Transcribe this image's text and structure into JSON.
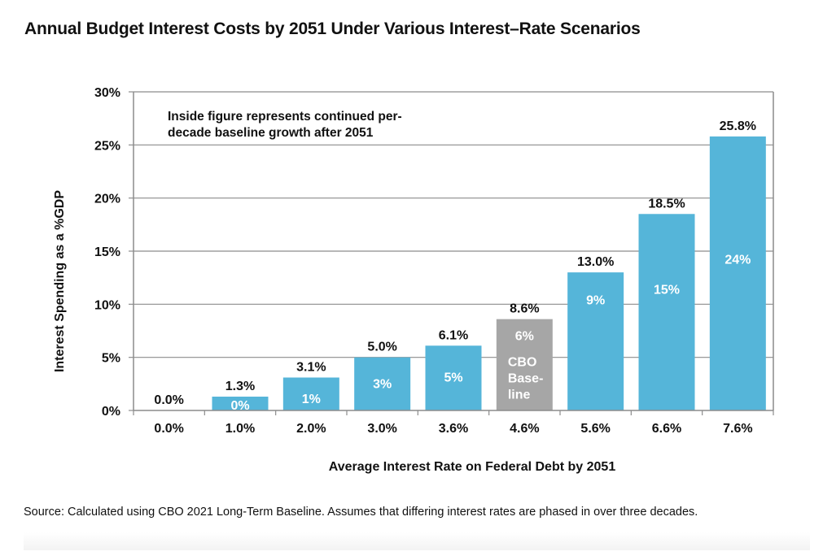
{
  "chart_data": {
    "type": "bar",
    "title": "Annual Budget Interest Costs by 2051 Under Various Interest–Rate Scenarios",
    "xlabel": "Average Interest Rate on Federal Debt by 2051",
    "ylabel": "Interest Spending as a %GDP",
    "ylim": [
      0,
      30
    ],
    "yticks": [
      0,
      5,
      10,
      15,
      20,
      25,
      30
    ],
    "ytick_labels": [
      "0%",
      "5%",
      "10%",
      "15%",
      "20%",
      "25%",
      "30%"
    ],
    "grid": true,
    "categories": [
      "0.0%",
      "1.0%",
      "2.0%",
      "3.0%",
      "3.6%",
      "4.6%",
      "5.6%",
      "6.6%",
      "7.6%"
    ],
    "values": [
      0.0,
      1.3,
      3.1,
      5.0,
      6.1,
      8.6,
      13.0,
      18.5,
      25.8
    ],
    "value_labels": [
      "0.0%",
      "1.3%",
      "3.1%",
      "5.0%",
      "6.1%",
      "8.6%",
      "13.0%",
      "18.5%",
      "25.8%"
    ],
    "inside_labels": [
      "",
      "0%",
      "1%",
      "3%",
      "5%",
      "6%",
      "9%",
      "15%",
      "24%"
    ],
    "inside_label_values": [
      null,
      0,
      1,
      3,
      5,
      6,
      9,
      15,
      24
    ],
    "highlight_index": 5,
    "highlight_text": [
      "CBO",
      "Base-",
      "line"
    ],
    "annotation": [
      "Inside figure represents continued per-",
      "decade baseline growth after 2051"
    ],
    "colors": {
      "bar": "#55b5d9",
      "highlight": "#a6a6a6",
      "grid": "#8c8c8c",
      "text": "#111111",
      "inside_text": "#ffffff"
    }
  },
  "source": "Source: Calculated using CBO 2021 Long-Term Baseline. Assumes that differing interest rates are phased in over three decades."
}
